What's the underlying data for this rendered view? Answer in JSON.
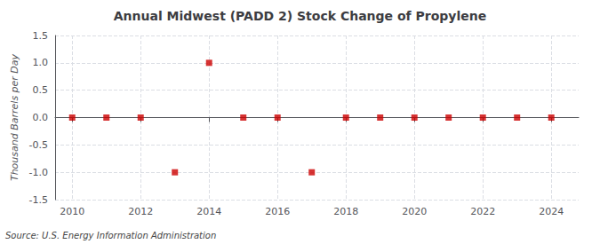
{
  "chart_data": {
    "type": "scatter",
    "title": "Annual Midwest (PADD 2) Stock Change of Propylene",
    "ylabel": "Thousand Barrels per Day",
    "source": "Source: U.S. Energy Information Administration",
    "x": [
      2010,
      2011,
      2012,
      2013,
      2014,
      2015,
      2016,
      2017,
      2018,
      2019,
      2020,
      2021,
      2022,
      2023,
      2024
    ],
    "values": [
      0,
      0,
      0,
      -1,
      1,
      0,
      0,
      -1,
      0,
      0,
      0,
      0,
      0,
      0,
      0
    ],
    "color": "#cc0000",
    "marker": "square",
    "xlim": [
      2009.5,
      2024.8
    ],
    "ylim": [
      -1.5,
      1.5
    ],
    "xticks": [
      2010,
      2012,
      2014,
      2016,
      2018,
      2020,
      2022,
      2024
    ],
    "yticks": [
      -1.5,
      {
        "value": -1.0,
        "label": "-1.0"
      },
      -0.5,
      {
        "value": 0.0,
        "label": "0.0"
      },
      0.5,
      {
        "value": 1.0,
        "label": "1.0"
      },
      1.5
    ],
    "grid": true
  }
}
